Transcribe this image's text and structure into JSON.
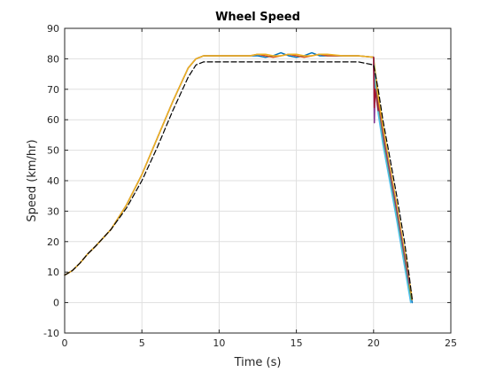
{
  "chart_data": {
    "type": "line",
    "title": "Wheel Speed",
    "xlabel": "Time (s)",
    "ylabel": "Speed (km/hr)",
    "xlim": [
      0,
      25
    ],
    "ylim": [
      -10,
      90
    ],
    "xticks": [
      0,
      5,
      10,
      15,
      20,
      25
    ],
    "yticks": [
      -10,
      0,
      10,
      20,
      30,
      40,
      50,
      60,
      70,
      80,
      90
    ],
    "grid": true,
    "legend": "none",
    "series": [
      {
        "color": "#0072BD",
        "dash": false,
        "x": [
          0,
          0.5,
          1,
          1.5,
          2,
          3,
          4,
          5,
          6,
          7,
          8,
          8.5,
          9,
          10,
          11,
          12,
          12.5,
          13,
          13.5,
          14,
          14.5,
          15,
          15.5,
          16,
          16.5,
          17,
          18,
          19,
          20,
          20.1,
          20.3,
          20.6,
          21,
          21.5,
          22,
          22.3,
          22.5
        ],
        "y": [
          9,
          10.5,
          13,
          16,
          18.5,
          24,
          32,
          42,
          54,
          66,
          77,
          80,
          81,
          81,
          81,
          81,
          81,
          80.5,
          81,
          82,
          81,
          80.5,
          81,
          82,
          81,
          81,
          81,
          81,
          80.5,
          72,
          64,
          55,
          44,
          30,
          15,
          6,
          0
        ]
      },
      {
        "color": "#D95319",
        "dash": false,
        "x": [
          0,
          0.5,
          1,
          1.5,
          2,
          3,
          4,
          5,
          6,
          7,
          8,
          8.5,
          9,
          10,
          11,
          12,
          12.5,
          13,
          13.5,
          14,
          14.5,
          15,
          15.5,
          16,
          16.5,
          17,
          18,
          19,
          20,
          20.1,
          20.3,
          20.6,
          21,
          21.5,
          22,
          22.3,
          22.5
        ],
        "y": [
          9,
          10.5,
          13,
          16,
          18.5,
          24,
          32,
          42,
          54,
          66,
          77,
          80,
          81,
          81,
          81,
          81,
          81.5,
          81,
          80.5,
          81,
          81.5,
          81,
          80.5,
          81,
          81.5,
          81,
          81,
          81,
          80.5,
          74,
          66,
          57,
          46,
          32,
          16,
          7,
          1
        ]
      },
      {
        "color": "#EDB120",
        "dash": false,
        "x": [
          0,
          0.5,
          1,
          1.5,
          2,
          3,
          4,
          5,
          6,
          7,
          8,
          8.5,
          9,
          10,
          11,
          12,
          12.5,
          13,
          13.5,
          14,
          14.5,
          15,
          15.5,
          16,
          16.5,
          17,
          18,
          19,
          20,
          20.1,
          20.3,
          20.6,
          21,
          21.5,
          22,
          22.3,
          22.5
        ],
        "y": [
          9,
          10.5,
          13,
          16,
          18.5,
          24,
          32,
          42,
          54,
          66,
          77,
          80,
          81,
          81,
          81,
          81,
          81.5,
          81.5,
          81,
          81,
          81.5,
          81.5,
          81,
          81,
          81.5,
          81.5,
          81,
          81,
          80.5,
          76,
          68,
          58,
          46,
          32,
          17,
          8,
          1
        ]
      },
      {
        "color": "#7E2F8E",
        "dash": false,
        "x": [
          20,
          20.05,
          20.1,
          20.3,
          20.6,
          21,
          21.5,
          22,
          22.3
        ],
        "y": [
          80.5,
          59,
          72,
          64,
          55,
          44,
          30,
          15,
          6
        ]
      },
      {
        "color": "#77AC30",
        "dash": false,
        "x": [
          20,
          20.1,
          20.3,
          20.6,
          21,
          21.5,
          22,
          22.4
        ],
        "y": [
          80.5,
          72,
          63,
          53,
          42,
          28,
          13,
          1
        ]
      },
      {
        "color": "#4DBEEE",
        "dash": false,
        "x": [
          20,
          20.1,
          20.3,
          20.6,
          21,
          21.5,
          22,
          22.4
        ],
        "y": [
          80.5,
          71,
          62,
          52,
          41,
          27,
          12,
          0
        ]
      },
      {
        "color": "#A2142F",
        "dash": false,
        "x": [
          20,
          20.05,
          20.1,
          20.3
        ],
        "y": [
          80.5,
          64,
          70,
          63
        ]
      },
      {
        "color": "#000000",
        "dash": true,
        "x": [
          0,
          0.5,
          1,
          1.5,
          2,
          3,
          4,
          5,
          6,
          7,
          8,
          8.5,
          9,
          9.5,
          10,
          12,
          15,
          18,
          19,
          20,
          20.3,
          20.6,
          21,
          21.5,
          22,
          22.3,
          22.5
        ],
        "y": [
          9,
          10.5,
          13,
          16,
          18.5,
          24,
          31,
          40,
          51,
          63,
          74,
          78,
          79,
          79,
          79,
          79,
          79,
          79,
          79,
          78,
          70,
          60,
          49,
          35,
          20,
          9,
          1
        ]
      }
    ]
  }
}
